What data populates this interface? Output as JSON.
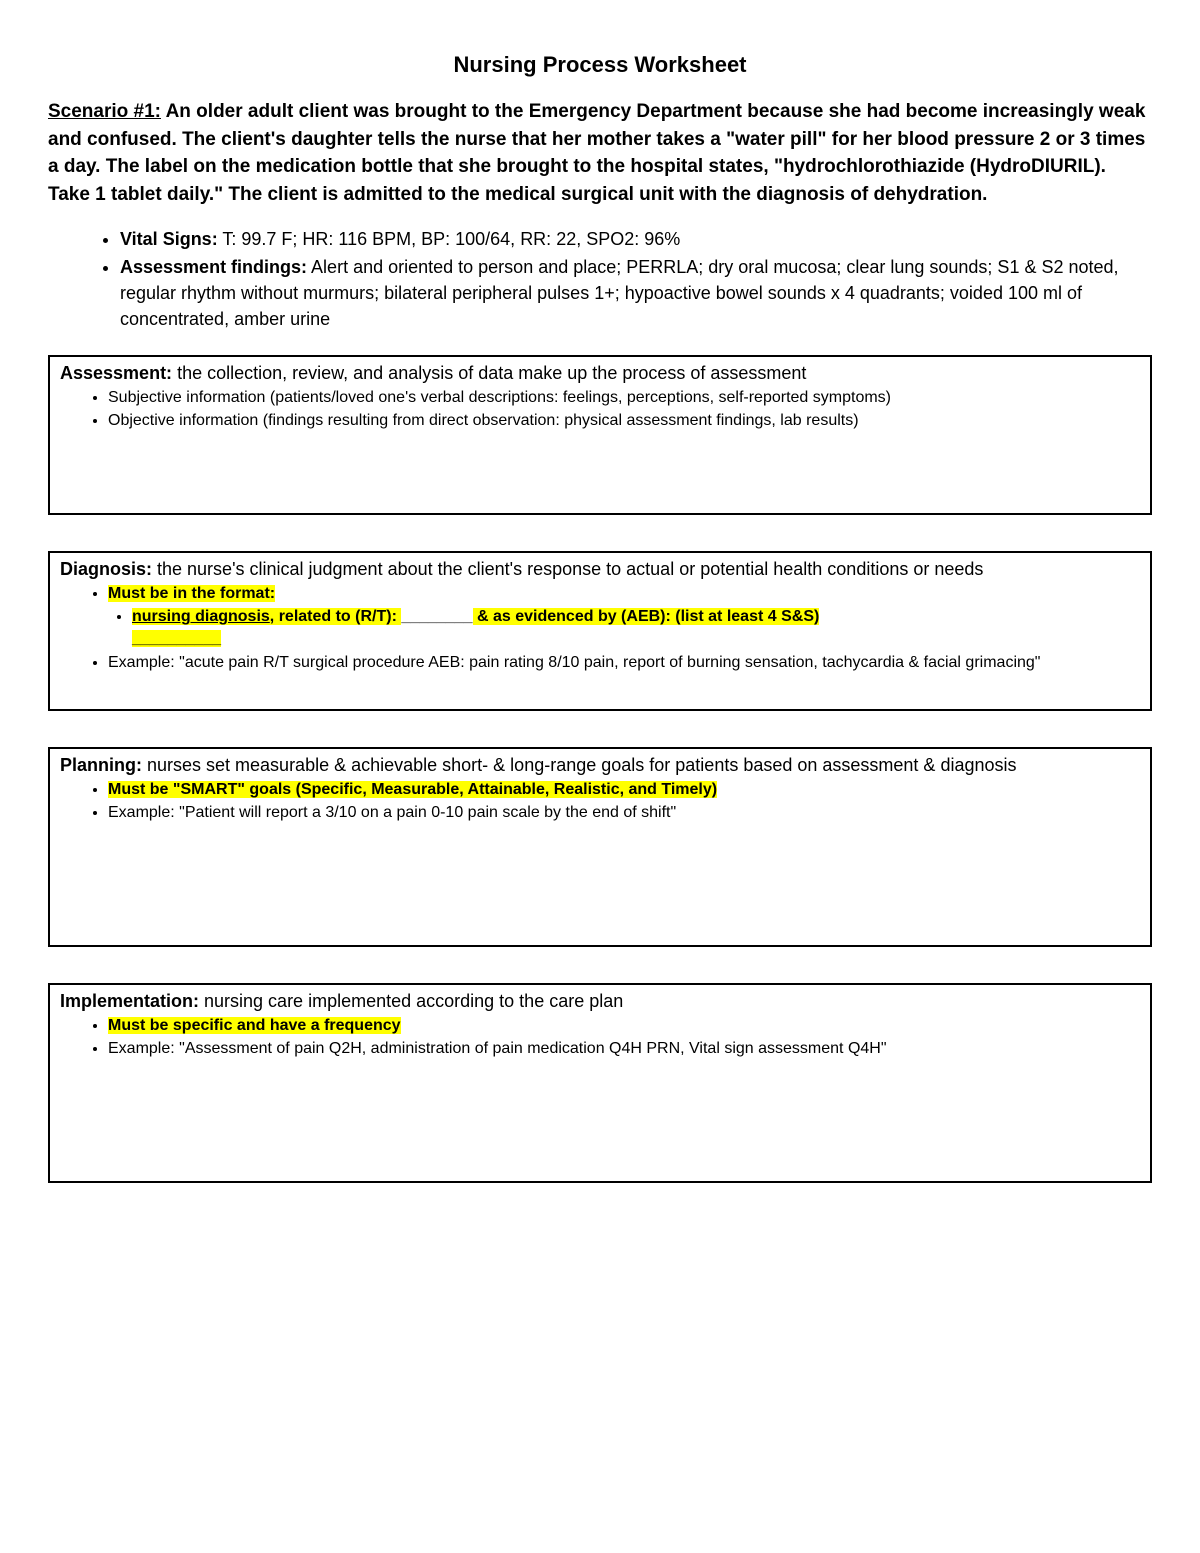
{
  "title": "Nursing Process Worksheet",
  "scenario": {
    "label": "Scenario #1:",
    "text": " An older adult client was brought to the Emergency Department because she had become increasingly weak and confused. The client's daughter tells the nurse that her mother takes a \"water pill\" for her blood pressure 2 or 3 times a day. The label on the medication bottle that she brought to the hospital states, \"hydrochlorothiazide (HydroDIURIL). Take 1 tablet daily.\" The client is admitted to the medical surgical unit with the diagnosis of dehydration."
  },
  "topBullets": {
    "vital": {
      "label": "Vital Signs:",
      "text": " T: 99.7 F; HR: 116 BPM, BP: 100/64, RR: 22, SPO2: 96%"
    },
    "findings": {
      "label": "Assessment findings:",
      "text": " Alert and oriented to person and place; PERRLA; dry oral mucosa; clear lung sounds; S1 & S2 noted, regular rhythm without murmurs; bilateral peripheral pulses 1+; hypoactive bowel sounds x 4 quadrants; voided 100 ml of concentrated, amber urine"
    }
  },
  "assessment": {
    "label": "Assessment:",
    "text": " the collection, review, and analysis of data make up the process of assessment",
    "b1": "Subjective information (patients/loved one's verbal descriptions: feelings, perceptions, self-reported symptoms)",
    "b2": "Objective information (findings resulting from direct observation: physical assessment findings, lab results)"
  },
  "diagnosis": {
    "label": "Diagnosis:",
    "text": " the nurse's clinical judgment about the client's response to actual or potential health conditions or needs",
    "hl1": "Must be in the format:",
    "sub_underline": "nursing diagnosis",
    "sub_rest1": ", related to (R/T): ",
    "sub_blank": "________",
    "sub_rest2": " & as evidenced by (AEB): (list at least 4 S&S)",
    "sub_trail": "__________",
    "example": "Example: \"acute pain R/T surgical procedure AEB: pain rating 8/10 pain, report of burning sensation, tachycardia & facial grimacing\""
  },
  "planning": {
    "label": "Planning:",
    "text": " nurses set measurable & achievable short- & long-range goals for patients based on assessment & diagnosis",
    "hl1": "Must be \"SMART\" goals (Specific, Measurable, Attainable, Realistic, and Timely)",
    "example": "Example: \"Patient will report a 3/10 on a pain 0-10 pain scale by the end of shift\""
  },
  "implementation": {
    "label": "Implementation:",
    "text": " nursing care implemented according to the care plan",
    "hl1": "Must be specific and have a frequency",
    "example": " Example: \"Assessment of pain Q2H, administration of pain medication Q4H PRN, Vital sign assessment Q4H\""
  },
  "colors": {
    "highlight": "#ffff00",
    "text": "#000000",
    "background": "#ffffff",
    "border": "#000000"
  }
}
